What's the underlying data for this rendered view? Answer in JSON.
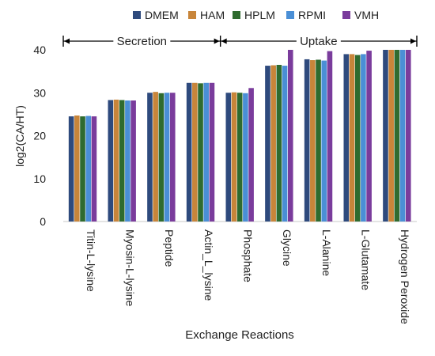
{
  "chart_data": {
    "type": "bar",
    "xlabel": "Exchange Reactions",
    "ylabel": "log2(CA/HT)",
    "ylim": [
      0,
      40
    ],
    "yticks": [
      0,
      10,
      20,
      30,
      40
    ],
    "grid": false,
    "legend_position": "top",
    "categories": [
      "Titin-L-lysine",
      "Myosin-L-lysine",
      "Peptide",
      "Actin_L_lysine",
      "Phosphate",
      "Glycine",
      "L-Alanine",
      "L-Glutamate",
      "Hydrogen Peroxide"
    ],
    "series": [
      {
        "name": "DMEM",
        "color": "#2e4a7d",
        "values": [
          24.5,
          28.3,
          30.0,
          32.3,
          30.0,
          36.3,
          37.8,
          39.0,
          40.0
        ]
      },
      {
        "name": "HAM",
        "color": "#c8853a",
        "values": [
          24.7,
          28.4,
          30.2,
          32.3,
          30.1,
          36.4,
          37.6,
          39.0,
          40.0
        ]
      },
      {
        "name": "HPLM",
        "color": "#2f6b2f",
        "values": [
          24.5,
          28.3,
          29.9,
          32.2,
          30.0,
          36.5,
          37.7,
          38.8,
          40.0
        ]
      },
      {
        "name": "RPMI",
        "color": "#4a8fd6",
        "values": [
          24.6,
          28.2,
          30.0,
          32.3,
          29.9,
          36.3,
          37.5,
          39.0,
          40.0
        ]
      },
      {
        "name": "VMH",
        "color": "#7a3c9c",
        "values": [
          24.5,
          28.2,
          30.0,
          32.3,
          31.1,
          40.0,
          39.7,
          39.8,
          40.0
        ]
      }
    ],
    "annotations": {
      "secretion_label": "Secretion",
      "uptake_label": "Uptake",
      "secretion_range": [
        "Titin-L-lysine",
        "Actin_L_lysine"
      ],
      "uptake_range": [
        "Phosphate",
        "Hydrogen Peroxide"
      ]
    }
  }
}
